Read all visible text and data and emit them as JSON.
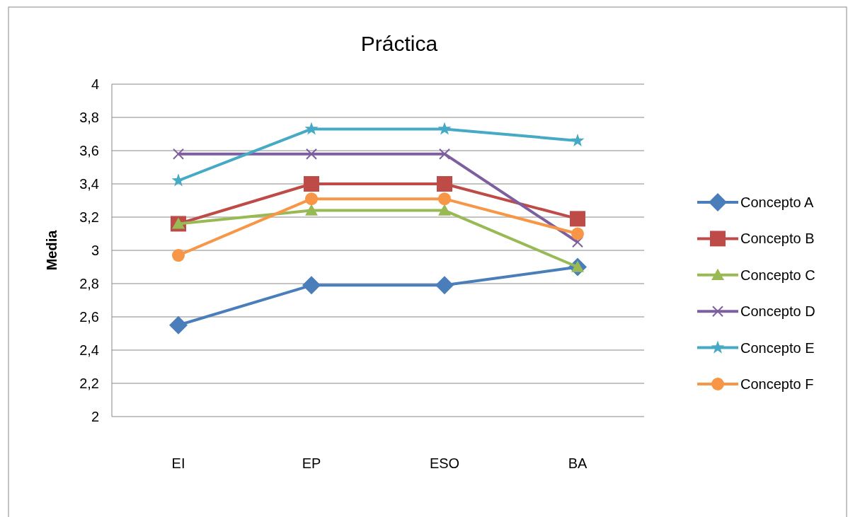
{
  "chart_data": {
    "type": "line",
    "title": "Práctica",
    "ylabel": "Media",
    "categories": [
      "EI",
      "EP",
      "ESO",
      "BA"
    ],
    "ylim": [
      2,
      4
    ],
    "yticks": [
      {
        "value": 2,
        "label": "2"
      },
      {
        "value": 2.2,
        "label": "2,2"
      },
      {
        "value": 2.4,
        "label": "2,4"
      },
      {
        "value": 2.6,
        "label": "2,6"
      },
      {
        "value": 2.8,
        "label": "2,8"
      },
      {
        "value": 3,
        "label": "3"
      },
      {
        "value": 3.2,
        "label": "3,2"
      },
      {
        "value": 3.4,
        "label": "3,4"
      },
      {
        "value": 3.6,
        "label": "3,6"
      },
      {
        "value": 3.8,
        "label": "3,8"
      },
      {
        "value": 4,
        "label": "4"
      }
    ],
    "grid": "y",
    "legend": "right",
    "line_style": "solid",
    "series": [
      {
        "name": "Concepto A",
        "color": "#4a7ebb",
        "marker": "diamond",
        "values": [
          2.55,
          2.79,
          2.79,
          2.9
        ]
      },
      {
        "name": "Concepto B",
        "color": "#be4b48",
        "marker": "square",
        "values": [
          3.16,
          3.4,
          3.4,
          3.19
        ]
      },
      {
        "name": "Concepto C",
        "color": "#98b954",
        "marker": "triangle",
        "values": [
          3.16,
          3.24,
          3.24,
          2.9
        ]
      },
      {
        "name": "Concepto D",
        "color": "#7d5fa0",
        "marker": "cross",
        "values": [
          3.58,
          3.58,
          3.58,
          3.05
        ]
      },
      {
        "name": "Concepto E",
        "color": "#46aac5",
        "marker": "star",
        "values": [
          3.42,
          3.73,
          3.73,
          3.66
        ]
      },
      {
        "name": "Concepto F",
        "color": "#f79646",
        "marker": "circle",
        "values": [
          2.97,
          3.31,
          3.31,
          3.1
        ]
      }
    ]
  }
}
